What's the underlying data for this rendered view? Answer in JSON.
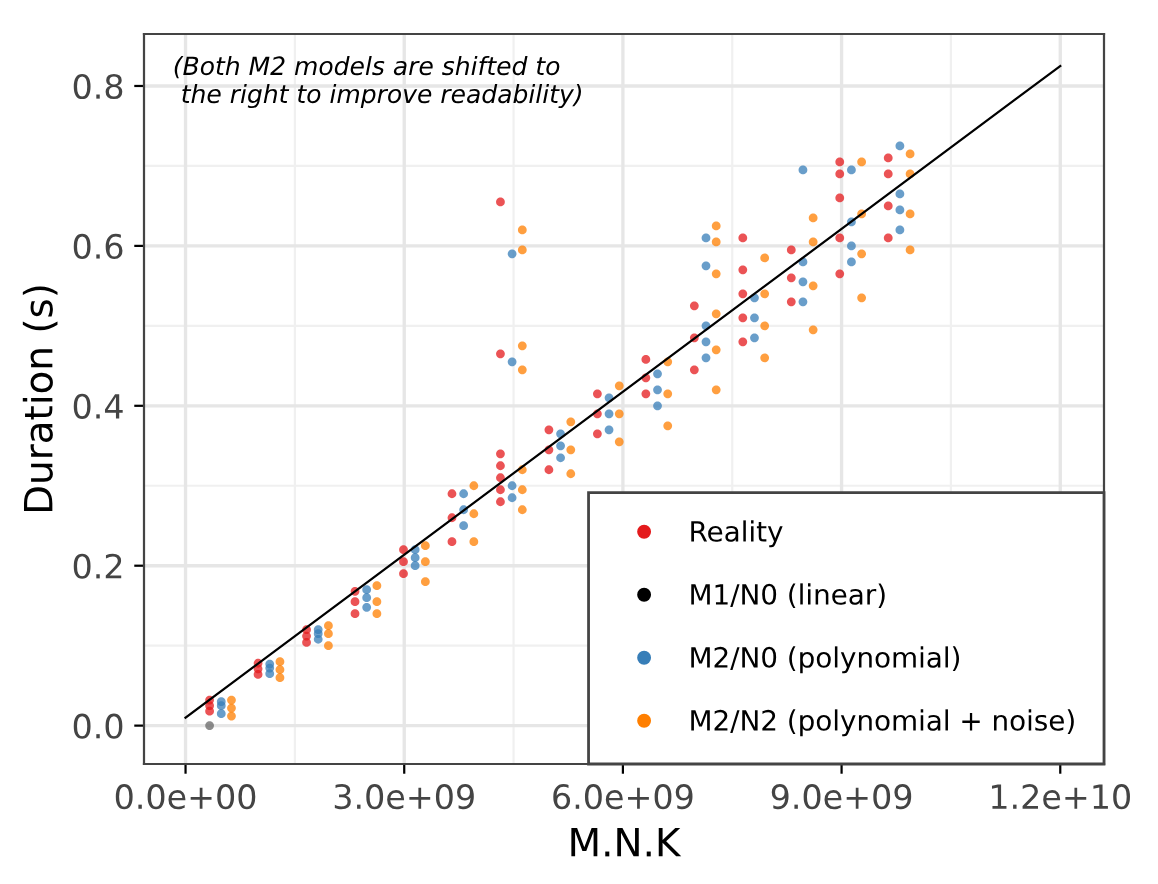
{
  "chart_data": {
    "type": "scatter",
    "xlabel": "M.N.K",
    "ylabel": "Duration (s)",
    "annotations": [
      "(Both M2 models are shifted to\n the right to improve readability)"
    ],
    "xlim": [
      -570000000.0,
      12600000000.0
    ],
    "ylim": [
      -0.048,
      0.865
    ],
    "xticks": [
      {
        "value": 0,
        "label": "0.0e+00"
      },
      {
        "value": 3000000000.0,
        "label": "3.0e+09"
      },
      {
        "value": 6000000000.0,
        "label": "6.0e+09"
      },
      {
        "value": 9000000000.0,
        "label": "9.0e+09"
      },
      {
        "value": 12000000000.0,
        "label": "1.2e+10"
      }
    ],
    "yticks": [
      {
        "value": 0,
        "label": "0.0"
      },
      {
        "value": 0.2,
        "label": "0.2"
      },
      {
        "value": 0.4,
        "label": "0.4"
      },
      {
        "value": 0.6,
        "label": "0.6"
      },
      {
        "value": 0.8,
        "label": "0.8"
      }
    ],
    "grid": true,
    "legend": "bottom right",
    "marker": "circle",
    "series": [
      {
        "name": "Reality",
        "color": "#e41a1c",
        "x": [
          330000000.0,
          330000000.0,
          330000000.0,
          995000000.0,
          995000000.0,
          995000000.0,
          1660000000.0,
          1660000000.0,
          1660000000.0,
          2325000000.0,
          2325000000.0,
          2325000000.0,
          2990000000.0,
          2990000000.0,
          2990000000.0,
          3655000000.0,
          3655000000.0,
          3655000000.0,
          4320000000.0,
          4320000000.0,
          4320000000.0,
          4320000000.0,
          4320000000.0,
          4320000000.0,
          4320000000.0,
          4985000000.0,
          4985000000.0,
          4985000000.0,
          5650000000.0,
          5650000000.0,
          5650000000.0,
          6315000000.0,
          6315000000.0,
          6315000000.0,
          6980000000.0,
          6980000000.0,
          6980000000.0,
          7645000000.0,
          7645000000.0,
          7645000000.0,
          7645000000.0,
          7645000000.0,
          8310000000.0,
          8310000000.0,
          8310000000.0,
          8975000000.0,
          8975000000.0,
          8975000000.0,
          8975000000.0,
          8975000000.0,
          9640000000.0,
          9640000000.0,
          9640000000.0,
          9640000000.0
        ],
        "values": [
          0.018,
          0.025,
          0.032,
          0.064,
          0.071,
          0.078,
          0.104,
          0.112,
          0.12,
          0.14,
          0.155,
          0.168,
          0.19,
          0.205,
          0.22,
          0.23,
          0.26,
          0.29,
          0.28,
          0.295,
          0.31,
          0.325,
          0.34,
          0.465,
          0.655,
          0.32,
          0.345,
          0.37,
          0.365,
          0.39,
          0.415,
          0.415,
          0.435,
          0.458,
          0.445,
          0.485,
          0.525,
          0.48,
          0.51,
          0.54,
          0.57,
          0.61,
          0.53,
          0.56,
          0.595,
          0.565,
          0.61,
          0.66,
          0.69,
          0.705,
          0.61,
          0.65,
          0.69,
          0.71
        ]
      },
      {
        "name": "M1/N0 (linear)",
        "color": "#000000",
        "type": "line",
        "marker": "none",
        "x": [
          0,
          12000000000.0
        ],
        "values": [
          0.01,
          0.825
        ]
      },
      {
        "color": "#666666",
        "x": [
          330000000.0
        ],
        "values": [
          0.0
        ]
      },
      {
        "name": "M2/N0 (polynomial)",
        "color": "#377eb8",
        "x": [
          490000000.0,
          490000000.0,
          490000000.0,
          1155000000.0,
          1155000000.0,
          1155000000.0,
          1820000000.0,
          1820000000.0,
          1820000000.0,
          2485000000.0,
          2485000000.0,
          2485000000.0,
          3150000000.0,
          3150000000.0,
          3150000000.0,
          3815000000.0,
          3815000000.0,
          3815000000.0,
          4480000000.0,
          4480000000.0,
          4480000000.0,
          4480000000.0,
          5145000000.0,
          5145000000.0,
          5145000000.0,
          5810000000.0,
          5810000000.0,
          5810000000.0,
          6475000000.0,
          6475000000.0,
          6475000000.0,
          7140000000.0,
          7140000000.0,
          7140000000.0,
          7140000000.0,
          7140000000.0,
          7805000000.0,
          7805000000.0,
          7805000000.0,
          8470000000.0,
          8470000000.0,
          8470000000.0,
          8470000000.0,
          9135000000.0,
          9135000000.0,
          9135000000.0,
          9135000000.0,
          9800000000.0,
          9800000000.0,
          9800000000.0,
          9800000000.0
        ],
        "values": [
          0.015,
          0.025,
          0.03,
          0.065,
          0.072,
          0.077,
          0.108,
          0.115,
          0.12,
          0.148,
          0.16,
          0.17,
          0.2,
          0.21,
          0.22,
          0.25,
          0.27,
          0.29,
          0.285,
          0.3,
          0.455,
          0.59,
          0.335,
          0.35,
          0.365,
          0.37,
          0.39,
          0.41,
          0.4,
          0.42,
          0.44,
          0.46,
          0.48,
          0.5,
          0.575,
          0.61,
          0.485,
          0.51,
          0.535,
          0.53,
          0.555,
          0.58,
          0.695,
          0.58,
          0.6,
          0.63,
          0.695,
          0.62,
          0.645,
          0.665,
          0.725
        ]
      },
      {
        "name": "M2/N2 (polynomial + noise)",
        "color": "#ff7f00",
        "x": [
          630000000.0,
          630000000.0,
          630000000.0,
          1295000000.0,
          1295000000.0,
          1295000000.0,
          1960000000.0,
          1960000000.0,
          1960000000.0,
          2625000000.0,
          2625000000.0,
          2625000000.0,
          3290000000.0,
          3290000000.0,
          3290000000.0,
          3955000000.0,
          3955000000.0,
          3955000000.0,
          4620000000.0,
          4620000000.0,
          4620000000.0,
          4620000000.0,
          4620000000.0,
          4620000000.0,
          4620000000.0,
          5285000000.0,
          5285000000.0,
          5285000000.0,
          5950000000.0,
          5950000000.0,
          5950000000.0,
          6615000000.0,
          6615000000.0,
          6615000000.0,
          7280000000.0,
          7280000000.0,
          7280000000.0,
          7280000000.0,
          7280000000.0,
          7280000000.0,
          7945000000.0,
          7945000000.0,
          7945000000.0,
          7945000000.0,
          8610000000.0,
          8610000000.0,
          8610000000.0,
          8610000000.0,
          9275000000.0,
          9275000000.0,
          9275000000.0,
          9275000000.0,
          9940000000.0,
          9940000000.0,
          9940000000.0,
          9940000000.0
        ],
        "values": [
          0.012,
          0.022,
          0.032,
          0.06,
          0.07,
          0.08,
          0.1,
          0.115,
          0.125,
          0.14,
          0.155,
          0.175,
          0.18,
          0.205,
          0.225,
          0.23,
          0.265,
          0.3,
          0.27,
          0.295,
          0.32,
          0.445,
          0.475,
          0.595,
          0.62,
          0.315,
          0.345,
          0.38,
          0.355,
          0.39,
          0.425,
          0.375,
          0.415,
          0.455,
          0.42,
          0.47,
          0.515,
          0.565,
          0.605,
          0.625,
          0.46,
          0.5,
          0.54,
          0.585,
          0.495,
          0.55,
          0.605,
          0.635,
          0.535,
          0.59,
          0.64,
          0.705,
          0.595,
          0.64,
          0.69,
          0.715
        ]
      }
    ]
  }
}
